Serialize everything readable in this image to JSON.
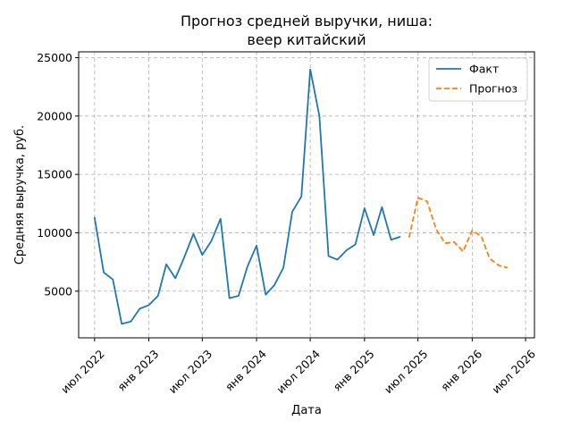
{
  "chart_data": {
    "type": "line",
    "title": "Прогноз средней выручки, ниша:\nвеер китайский",
    "title_lines": [
      "Прогноз средней выручки, ниша:",
      "веер китайский"
    ],
    "xlabel": "Дата",
    "ylabel": "Средняя выручка, руб.",
    "ylim": [
      1000,
      25500
    ],
    "xlim": [
      "2022-05-08",
      "2026-07-31"
    ],
    "y_ticks": [
      5000,
      10000,
      15000,
      20000,
      25000
    ],
    "y_tick_labels": [
      "5000",
      "10000",
      "15000",
      "20000",
      "25000"
    ],
    "x_ticks": [
      "2022-07-01",
      "2023-01-01",
      "2023-07-01",
      "2024-01-01",
      "2024-07-01",
      "2025-01-01",
      "2025-07-01",
      "2026-01-01",
      "2026-07-01"
    ],
    "x_tick_labels": [
      "июл 2022",
      "янв 2023",
      "июл 2023",
      "янв 2024",
      "июл 2024",
      "янв 2025",
      "июл 2025",
      "янв 2026",
      "июл 2026"
    ],
    "grid": true,
    "legend_position": "top-right",
    "series": [
      {
        "name": "Факт",
        "color": "#1f77b4",
        "style": "solid",
        "points": [
          [
            "2022-07-01",
            11300
          ],
          [
            "2022-08-01",
            6600
          ],
          [
            "2022-09-01",
            6000
          ],
          [
            "2022-10-01",
            2200
          ],
          [
            "2022-11-01",
            2400
          ],
          [
            "2022-12-01",
            3500
          ],
          [
            "2023-01-01",
            3800
          ],
          [
            "2023-02-01",
            4600
          ],
          [
            "2023-03-01",
            7300
          ],
          [
            "2023-04-01",
            6100
          ],
          [
            "2023-05-01",
            7900
          ],
          [
            "2023-06-01",
            9900
          ],
          [
            "2023-07-01",
            8100
          ],
          [
            "2023-08-01",
            9300
          ],
          [
            "2023-09-01",
            11200
          ],
          [
            "2023-10-01",
            4400
          ],
          [
            "2023-11-01",
            4600
          ],
          [
            "2023-12-01",
            7100
          ],
          [
            "2024-01-01",
            8900
          ],
          [
            "2024-02-01",
            4700
          ],
          [
            "2024-03-01",
            5500
          ],
          [
            "2024-04-01",
            7000
          ],
          [
            "2024-05-01",
            11800
          ],
          [
            "2024-06-01",
            13100
          ],
          [
            "2024-07-01",
            24000
          ],
          [
            "2024-08-01",
            20000
          ],
          [
            "2024-09-01",
            8000
          ],
          [
            "2024-10-01",
            7700
          ],
          [
            "2024-11-01",
            8500
          ],
          [
            "2024-12-01",
            9000
          ],
          [
            "2025-01-01",
            12100
          ],
          [
            "2025-02-01",
            9800
          ],
          [
            "2025-03-01",
            12200
          ],
          [
            "2025-04-01",
            9400
          ],
          [
            "2025-05-01",
            9650
          ]
        ]
      },
      {
        "name": "Прогноз",
        "color": "#ff7f0e",
        "style": "dashed",
        "points": [
          [
            "2025-06-01",
            9600
          ],
          [
            "2025-07-01",
            13000
          ],
          [
            "2025-08-01",
            12700
          ],
          [
            "2025-09-01",
            10300
          ],
          [
            "2025-10-01",
            9100
          ],
          [
            "2025-11-01",
            9200
          ],
          [
            "2025-12-01",
            8400
          ],
          [
            "2026-01-01",
            10200
          ],
          [
            "2026-02-01",
            9700
          ],
          [
            "2026-03-01",
            7800
          ],
          [
            "2026-04-01",
            7200
          ],
          [
            "2026-05-01",
            7000
          ]
        ]
      }
    ]
  }
}
